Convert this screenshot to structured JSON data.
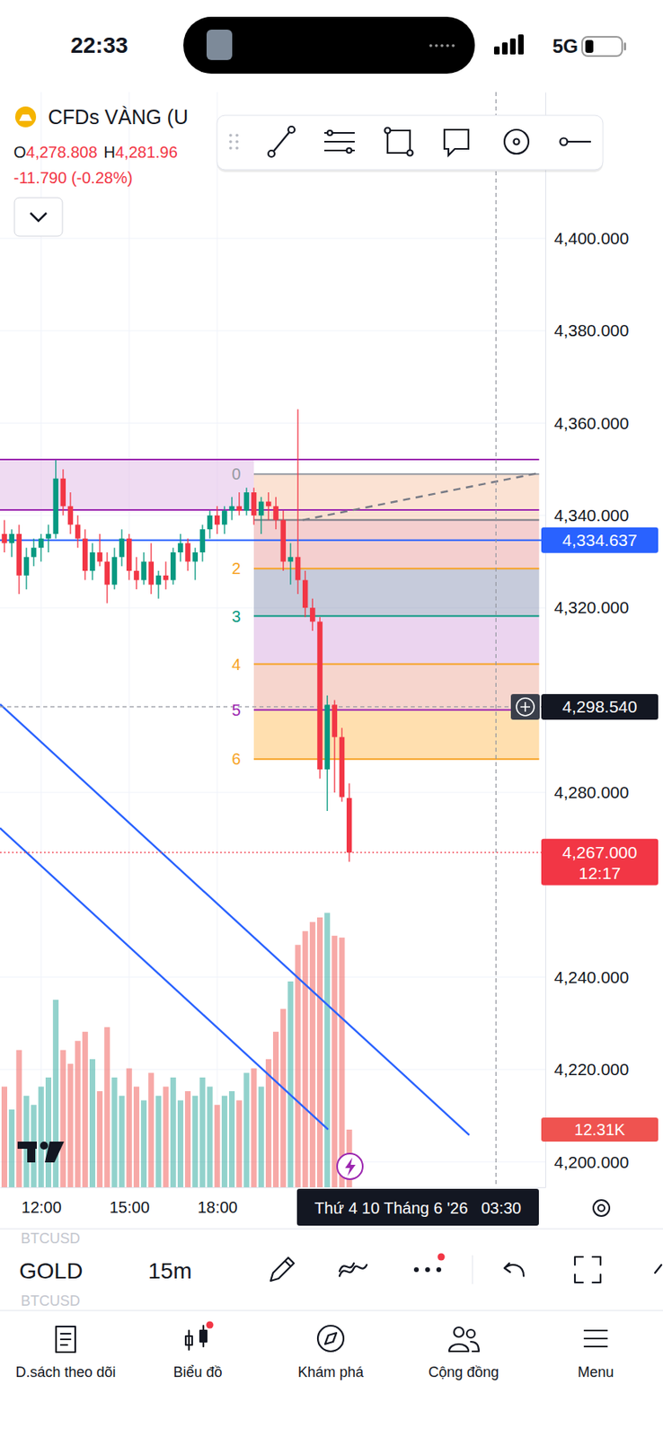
{
  "status_bar": {
    "time": "22:33",
    "network": "5G"
  },
  "header": {
    "symbol": "CFDs VÀNG (U",
    "ohlc": [
      {
        "key": "O",
        "value": "4,278.808"
      },
      {
        "key": "H",
        "value": "4,281.96"
      }
    ],
    "change": "-11.790 (-0.28%)"
  },
  "chart_data": {
    "type": "candlestick",
    "x": [
      10.75,
      11,
      11.25,
      11.5,
      11.75,
      12,
      12.25,
      12.5,
      12.75,
      13,
      13.25,
      13.5,
      13.75,
      14,
      14.25,
      14.5,
      14.75,
      15,
      15.25,
      15.5,
      15.75,
      16,
      16.25,
      16.5,
      16.75,
      17,
      17.25,
      17.5,
      17.75,
      18,
      18.25,
      18.5,
      18.75,
      19,
      19.25,
      19.5,
      19.75,
      20,
      20.25,
      20.5,
      20.75,
      21,
      21.25,
      21.5,
      21.75,
      22,
      22.25,
      22.5
    ],
    "xlim": [
      10.6,
      29.18
    ],
    "xticks": [
      {
        "value": 12,
        "label": "12:00"
      },
      {
        "value": 15,
        "label": "15:00"
      },
      {
        "value": 18,
        "label": "18:00"
      }
    ],
    "ylim": [
      4194.5,
      4431.7
    ],
    "yticks": [
      {
        "value": 4200,
        "label": "4,200.000"
      },
      {
        "value": 4220,
        "label": "4,220.000"
      },
      {
        "value": 4240,
        "label": "4,240.000"
      },
      {
        "value": 4280,
        "label": "4,280.000"
      },
      {
        "value": 4320,
        "label": "4,320.000"
      },
      {
        "value": 4340,
        "label": "4,340.000"
      },
      {
        "value": 4360,
        "label": "4,360.000"
      },
      {
        "value": 4380,
        "label": "4,380.000"
      },
      {
        "value": 4400,
        "label": "4,400.000"
      }
    ],
    "y2lim": [
      0,
      234000
    ],
    "y2ticks": [
      {
        "value": 12310,
        "label": "12.31K"
      }
    ],
    "grid": true,
    "series": [
      {
        "type": "candlestick",
        "open": [
          4336,
          4334,
          4336,
          4327,
          4331,
          4333,
          4335,
          4336,
          4348,
          4342,
          4338,
          4335,
          4328,
          4332,
          4330,
          4325,
          4331,
          4335,
          4328,
          4326,
          4330,
          4325,
          4327,
          4326,
          4332,
          4334,
          4330,
          4332,
          4337,
          4340,
          4338,
          4341,
          4342,
          4341,
          4345,
          4340,
          4343,
          4342,
          4339,
          4330,
          4331,
          4326,
          4320,
          4317,
          4285,
          4299,
          4292,
          4278.808
        ],
        "high": [
          4339,
          4337,
          4338,
          4333,
          4335,
          4336,
          4338,
          4352,
          4350,
          4345,
          4340,
          4337,
          4334,
          4336,
          4332,
          4333,
          4337,
          4336,
          4331,
          4332,
          4334,
          4328,
          4330,
          4333,
          4336,
          4335,
          4333,
          4338,
          4341,
          4342,
          4342,
          4344,
          4345,
          4346,
          4346,
          4344,
          4345,
          4344,
          4341,
          4334,
          4363,
          4328,
          4322,
          4318,
          4301,
          4300,
          4294,
          4281.96
        ],
        "low": [
          4332,
          4331,
          4323,
          4324,
          4329,
          4330,
          4332,
          4335,
          4340,
          4336,
          4333,
          4326,
          4326,
          4329,
          4321,
          4324,
          4329,
          4326,
          4324,
          4325,
          4323,
          4322,
          4324,
          4325,
          4330,
          4328,
          4326,
          4330,
          4335,
          4336,
          4336,
          4339,
          4340,
          4340,
          4338,
          4336,
          4339,
          4337,
          4328,
          4325,
          4323,
          4318,
          4315,
          4283,
          4276,
          4280,
          4278,
          4265
        ],
        "close": [
          4334,
          4336,
          4327,
          4331,
          4333,
          4335,
          4336,
          4348,
          4342,
          4338,
          4335,
          4328,
          4332,
          4330,
          4325,
          4331,
          4335,
          4328,
          4326,
          4330,
          4325,
          4327,
          4326,
          4332,
          4334,
          4330,
          4332,
          4337,
          4340,
          4338,
          4341,
          4342,
          4341,
          4345,
          4340,
          4343,
          4342,
          4339,
          4330,
          4331,
          4326,
          4320,
          4317,
          4285,
          4299,
          4292,
          4279,
          4267
        ],
        "colors": [
          "#f23645",
          "#089981",
          "#f23645",
          "#089981",
          "#089981",
          "#089981",
          "#089981",
          "#089981",
          "#f23645",
          "#f23645",
          "#f23645",
          "#f23645",
          "#089981",
          "#f23645",
          "#f23645",
          "#089981",
          "#089981",
          "#f23645",
          "#f23645",
          "#089981",
          "#f23645",
          "#089981",
          "#f23645",
          "#089981",
          "#089981",
          "#f23645",
          "#089981",
          "#089981",
          "#089981",
          "#f23645",
          "#089981",
          "#089981",
          "#f23645",
          "#089981",
          "#f23645",
          "#089981",
          "#f23645",
          "#f23645",
          "#f23645",
          "#089981",
          "#f23645",
          "#f23645",
          "#f23645",
          "#f23645",
          "#089981",
          "#f23645",
          "#f23645",
          "#f23645"
        ]
      },
      {
        "type": "bar",
        "axis": "y2",
        "values": [
          21490,
          16610,
          29310,
          19540,
          17590,
          21490,
          23450,
          40060,
          29310,
          26380,
          31260,
          33220,
          27360,
          20520,
          34200,
          23450,
          19540,
          25400,
          21490,
          18560,
          24430,
          19540,
          21490,
          23450,
          18560,
          20520,
          19540,
          23450,
          21490,
          17590,
          19540,
          20520,
          18560,
          24430,
          25400,
          21490,
          27360,
          33220,
          38100,
          43970,
          51780,
          54710,
          56670,
          57640,
          58620,
          53740,
          53340,
          12310
        ],
        "colors": [
          "#ef5350",
          "#26a69a",
          "#ef5350",
          "#26a69a",
          "#26a69a",
          "#26a69a",
          "#26a69a",
          "#26a69a",
          "#ef5350",
          "#ef5350",
          "#ef5350",
          "#ef5350",
          "#26a69a",
          "#ef5350",
          "#ef5350",
          "#26a69a",
          "#26a69a",
          "#ef5350",
          "#ef5350",
          "#26a69a",
          "#ef5350",
          "#26a69a",
          "#ef5350",
          "#26a69a",
          "#26a69a",
          "#ef5350",
          "#26a69a",
          "#26a69a",
          "#26a69a",
          "#ef5350",
          "#26a69a",
          "#26a69a",
          "#ef5350",
          "#26a69a",
          "#ef5350",
          "#26a69a",
          "#ef5350",
          "#ef5350",
          "#ef5350",
          "#26a69a",
          "#ef5350",
          "#ef5350",
          "#ef5350",
          "#ef5350",
          "#26a69a",
          "#ef5350",
          "#ef5350",
          "#ef5350"
        ]
      }
    ],
    "hlines": [
      {
        "value": 4352.1,
        "color": "#9c27b0",
        "x": [
          10.6,
          28.97
        ]
      },
      {
        "value": 4341.2,
        "color": "#9c27b0",
        "x": [
          10.6,
          28.97
        ]
      },
      {
        "value": 4334.637,
        "color": "#2962ff",
        "x": [
          10.6,
          29.18
        ],
        "label": "4,334.637"
      }
    ],
    "bands": [
      {
        "y": [
          4341.2,
          4352.1
        ],
        "x": [
          10.6,
          19.25
        ],
        "color": "#e1bee7"
      }
    ],
    "fib": {
      "x": [
        19.25,
        28.97
      ],
      "levels": [
        {
          "label": "0",
          "value": 4348.96,
          "color": "#9598a1"
        },
        {
          "value": 4339.03,
          "color": "#787b86"
        },
        {
          "label": "2",
          "value": 4328.5,
          "color": "#f7a325"
        },
        {
          "label": "3",
          "value": 4318.2,
          "color": "#089981"
        },
        {
          "label": "4",
          "value": 4307.8,
          "color": "#f7a325"
        },
        {
          "label": "5",
          "value": 4297.9,
          "color": "#9c27b0"
        },
        {
          "label": "6",
          "value": 4287.2,
          "color": "#f7a325"
        }
      ]
    },
    "trendlines": [
      {
        "x": [
          10.6,
          26.59
        ],
        "y": [
          4299.1,
          4205.8
        ],
        "color": "#2962ff",
        "line_style": "solid"
      },
      {
        "x": [
          10.6,
          21.78
        ],
        "y": [
          4272.3,
          4207.0
        ],
        "color": "#2962ff",
        "line_style": "solid"
      },
      {
        "x": [
          20.91,
          28.97
        ],
        "y": [
          4339.0,
          4349.2
        ],
        "color": "#787b86",
        "line_style": "dashed"
      }
    ],
    "crosshair": {
      "x": 27.5,
      "x_label": "Thứ 4 10 Tháng 6 '26   03:30",
      "y": 4298.54,
      "y_label": "4,298.540"
    },
    "last_price": {
      "value": 4267,
      "label": "4,267.000",
      "countdown": "12:17",
      "color": "#f23645"
    }
  },
  "toolbar": {
    "symbol": "GOLD",
    "interval": "15m",
    "watermark": [
      "BTCUSD",
      "BTCUSD"
    ]
  },
  "nav": [
    "D.sách theo dõi",
    "Biểu đồ",
    "Khám phá",
    "Cộng đồng",
    "Menu"
  ]
}
